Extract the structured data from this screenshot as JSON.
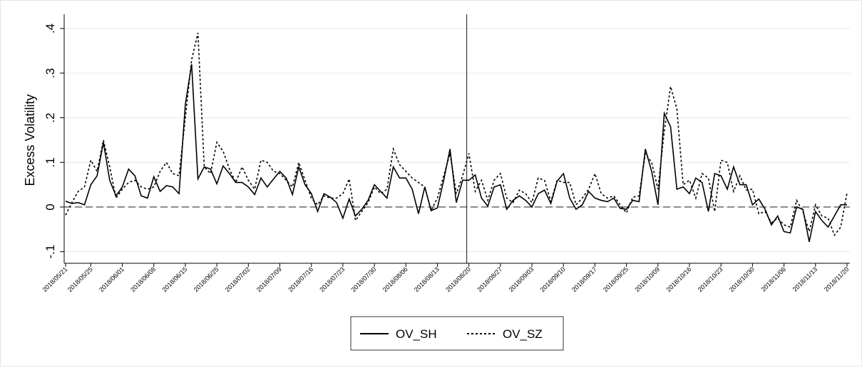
{
  "chart_data": {
    "type": "line",
    "y_label": "Excess Volatility",
    "categories": [
      "2018/05/21",
      null,
      null,
      null,
      "2018/05/25",
      null,
      null,
      null,
      null,
      "2018/06/01",
      null,
      null,
      null,
      null,
      "2018/06/08",
      null,
      null,
      null,
      null,
      "2018/06/15",
      null,
      null,
      null,
      null,
      "2018/06/25",
      null,
      null,
      null,
      null,
      "2018/07/02",
      null,
      null,
      null,
      null,
      "2018/07/09",
      null,
      null,
      null,
      null,
      "2018/07/16",
      null,
      null,
      null,
      null,
      "2018/07/23",
      null,
      null,
      null,
      null,
      "2018/07/30",
      null,
      null,
      null,
      null,
      "2018/08/06",
      null,
      null,
      null,
      null,
      "2018/08/13",
      null,
      null,
      null,
      null,
      "2018/08/20",
      null,
      null,
      null,
      null,
      "2018/08/27",
      null,
      null,
      null,
      null,
      "2018/09/03",
      null,
      null,
      null,
      null,
      "2018/09/10",
      null,
      null,
      null,
      null,
      "2018/09/17",
      null,
      null,
      null,
      null,
      "2018/09/25",
      null,
      null,
      null,
      null,
      "2018/10/09",
      null,
      null,
      null,
      null,
      "2018/10/16",
      null,
      null,
      null,
      null,
      "2018/10/23",
      null,
      null,
      null,
      null,
      "2018/10/30",
      null,
      null,
      null,
      null,
      "2018/11/06",
      null,
      null,
      null,
      null,
      "2018/11/13",
      null,
      null,
      null,
      null,
      "2018/11/20"
    ],
    "series": [
      {
        "name": "OV_SH",
        "color": "#000000",
        "dash": "solid",
        "values": [
          0.013,
          0.008,
          0.01,
          0.005,
          0.05,
          0.07,
          0.145,
          0.06,
          0.025,
          0.045,
          0.085,
          0.07,
          0.025,
          0.02,
          0.068,
          0.035,
          0.048,
          0.045,
          0.03,
          0.23,
          0.32,
          0.063,
          0.09,
          0.085,
          0.052,
          0.092,
          0.075,
          0.055,
          0.055,
          0.045,
          0.028,
          0.065,
          0.045,
          0.063,
          0.08,
          0.065,
          0.028,
          0.09,
          0.05,
          0.03,
          -0.01,
          0.03,
          0.022,
          0.01,
          -0.025,
          0.018,
          -0.02,
          -0.005,
          0.015,
          0.05,
          0.035,
          0.02,
          0.09,
          0.065,
          0.065,
          0.04,
          -0.015,
          0.045,
          -0.008,
          -0.002,
          0.06,
          0.13,
          0.01,
          0.06,
          0.06,
          0.072,
          0.02,
          0.002,
          0.045,
          0.05,
          -0.005,
          0.015,
          0.025,
          0.015,
          0,
          0.03,
          0.038,
          0.008,
          0.058,
          0.075,
          0.02,
          -0.005,
          0.005,
          0.035,
          0.02,
          0.015,
          0.012,
          0.02,
          -0.003,
          -0.005,
          0.015,
          0.012,
          0.13,
          0.08,
          0.005,
          0.21,
          0.18,
          0.04,
          0.045,
          0.03,
          0.065,
          0.055,
          -0.01,
          0.075,
          0.07,
          0.04,
          0.09,
          0.05,
          0.05,
          0.005,
          0.018,
          -0.005,
          -0.04,
          -0.02,
          -0.055,
          -0.058,
          0,
          -0.005,
          -0.078,
          -0.01,
          -0.03,
          -0.045,
          -0.02,
          0.005,
          0.005
        ]
      },
      {
        "name": "OV_SZ",
        "color": "#000000",
        "dash": "dotted",
        "values": [
          -0.018,
          0.01,
          0.035,
          0.045,
          0.105,
          0.08,
          0.15,
          0.09,
          0.02,
          0.04,
          0.055,
          0.06,
          0.045,
          0.04,
          0.045,
          0.08,
          0.1,
          0.075,
          0.07,
          0.2,
          0.33,
          0.39,
          0.09,
          0.075,
          0.145,
          0.125,
          0.085,
          0.055,
          0.09,
          0.06,
          0.04,
          0.105,
          0.1,
          0.08,
          0.075,
          0.06,
          0.045,
          0.1,
          0.06,
          0.02,
          0.005,
          0.025,
          0.02,
          0.02,
          0.03,
          0.063,
          -0.03,
          -0.01,
          0.01,
          0.045,
          0.03,
          0.04,
          0.13,
          0.095,
          0.08,
          0.065,
          0.055,
          0.045,
          -0.008,
          0.02,
          0.07,
          0.12,
          0.03,
          0.07,
          0.12,
          0.035,
          0.06,
          0.015,
          0.06,
          0.075,
          0.02,
          0.01,
          0.038,
          0.03,
          0.01,
          0.065,
          0.06,
          0.012,
          0.06,
          0.055,
          0.055,
          0.005,
          0.02,
          0.04,
          0.075,
          0.03,
          0.02,
          0.025,
          0.005,
          -0.013,
          0.022,
          0.025,
          0.12,
          0.1,
          0.04,
          0.17,
          0.27,
          0.22,
          0.05,
          0.06,
          0.02,
          0.075,
          0.065,
          -0.01,
          0.105,
          0.1,
          0.035,
          0.07,
          0.038,
          0.04,
          -0.015,
          -0.01,
          -0.035,
          -0.025,
          -0.04,
          -0.045,
          0.015,
          -0.01,
          -0.055,
          0.005,
          -0.02,
          -0.025,
          -0.063,
          -0.045,
          0.032
        ]
      }
    ],
    "ylim": [
      -0.126,
      0.432
    ],
    "yticks": [
      {
        "value": -0.1,
        "label": "-.1"
      },
      0,
      {
        "value": 0.1,
        "label": ".1"
      },
      {
        "value": 0.2,
        "label": ".2"
      },
      {
        "value": 0.3,
        "label": ".3"
      },
      {
        "value": 0.4,
        "label": ".4"
      }
    ],
    "grid": true,
    "reference_line_y": 0,
    "reference_line_x": "2018/08/20",
    "legend": "bottom"
  }
}
